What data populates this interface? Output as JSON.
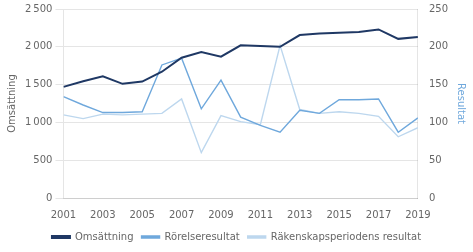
{
  "chart_data": {
    "type": "line",
    "ylabel": "Omsättning",
    "y2label": "Resultat",
    "x": [
      2001,
      2002,
      2003,
      2004,
      2005,
      2006,
      2007,
      2008,
      2009,
      2010,
      2011,
      2012,
      2013,
      2014,
      2015,
      2016,
      2017,
      2018,
      2019
    ],
    "xlim": [
      2001,
      2019
    ],
    "xticks": [
      2001,
      2003,
      2005,
      2007,
      2009,
      2011,
      2013,
      2015,
      2017,
      2019
    ],
    "ylim": [
      0,
      2500
    ],
    "yticks": [
      0,
      500,
      {
        "value": 1000,
        "label": "1 000"
      },
      {
        "value": 1500,
        "label": "1 500"
      },
      {
        "value": 2000,
        "label": "2 000"
      },
      {
        "value": 2500,
        "label": "2 500"
      }
    ],
    "y2lim": [
      0,
      250
    ],
    "y2ticks": [
      0,
      50,
      100,
      150,
      200,
      250
    ],
    "grid": true,
    "legend": "bottom",
    "series": [
      {
        "name": "Omsättning",
        "color": "#1F3864",
        "axis": "y",
        "values": [
          1470,
          1545,
          1610,
          1510,
          1540,
          1670,
          1855,
          1930,
          1870,
          2020,
          2010,
          2000,
          2155,
          2175,
          2185,
          2195,
          2230,
          2105,
          2130
        ]
      },
      {
        "name": "Rörelseresultat",
        "color": "#6FA8DC",
        "axis": "y2",
        "values": [
          134,
          123,
          113,
          113,
          114,
          176,
          185,
          118,
          156,
          107,
          96,
          87,
          116,
          112,
          130,
          130,
          131,
          87,
          106
        ]
      },
      {
        "name": "Räkenskapsperiodens resultat",
        "color": "#BDD7EE",
        "axis": "y2",
        "values": [
          110,
          105,
          111,
          110,
          111,
          112,
          131,
          60,
          109,
          101,
          97,
          202,
          117,
          112,
          114,
          112,
          108,
          81,
          93
        ]
      }
    ]
  }
}
